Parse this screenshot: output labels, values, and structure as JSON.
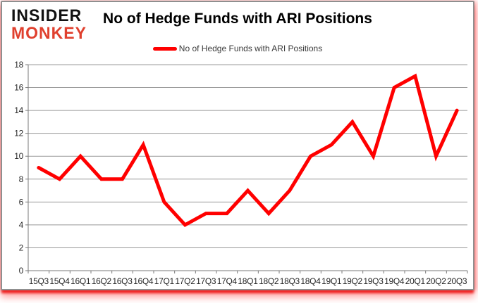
{
  "header": {
    "logo": {
      "line1": "INSIDER",
      "line2": "MONKEY",
      "line2_color": "#e0402e"
    },
    "title": "No of Hedge Funds with ARI Positions",
    "legend": {
      "label": "No of Hedge Funds with ARI Positions",
      "color": "#ff0000"
    }
  },
  "chart_data": {
    "type": "line",
    "title": "No of Hedge Funds with ARI Positions",
    "categories": [
      "15Q3",
      "15Q4",
      "16Q1",
      "16Q2",
      "16Q3",
      "16Q4",
      "17Q1",
      "17Q2",
      "17Q3",
      "17Q4",
      "18Q1",
      "18Q2",
      "18Q3",
      "18Q4",
      "19Q1",
      "19Q2",
      "19Q3",
      "19Q4",
      "20Q1",
      "20Q2",
      "20Q3"
    ],
    "series": [
      {
        "name": "No of Hedge Funds with ARI Positions",
        "color": "#ff0000",
        "values": [
          9,
          8,
          10,
          8,
          8,
          11,
          6,
          4,
          5,
          5,
          7,
          5,
          7,
          10,
          11,
          13,
          10,
          16,
          17,
          10,
          14
        ]
      }
    ],
    "xlabel": "",
    "ylabel": "",
    "ylim": [
      0,
      18
    ],
    "ytick_step": 2,
    "grid": true,
    "grid_color": "#999999",
    "axis_color": "#7a7a7a",
    "legend_position": "top"
  }
}
